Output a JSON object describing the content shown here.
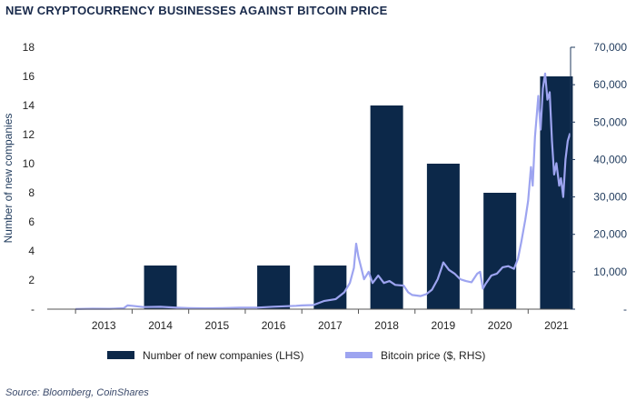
{
  "title": "NEW CRYPTOCURRENCY BUSINESSES AGAINST BITCOIN PRICE",
  "source": "Source: Bloomberg, CoinShares",
  "colors": {
    "bars": "#0c2849",
    "line": "#9da4f0",
    "axis_right": "#1f3a5c",
    "title": "#1a2b4c"
  },
  "chart_data": {
    "type": "bar",
    "categories": [
      "2013",
      "2014",
      "2015",
      "2016",
      "2017",
      "2018",
      "2019",
      "2020",
      "2021"
    ],
    "series": [
      {
        "name": "Number of new companies (LHS)",
        "type": "bar",
        "axis": "left",
        "values": [
          0,
          3,
          0,
          3,
          3,
          14,
          10,
          8,
          16
        ]
      },
      {
        "name": "Bitcoin price ($, RHS)",
        "type": "line",
        "axis": "right",
        "points": [
          [
            2013.0,
            20
          ],
          [
            2013.3,
            120
          ],
          [
            2013.6,
            100
          ],
          [
            2013.85,
            250
          ],
          [
            2013.92,
            1000
          ],
          [
            2014.0,
            900
          ],
          [
            2014.2,
            550
          ],
          [
            2014.5,
            620
          ],
          [
            2014.8,
            380
          ],
          [
            2015.0,
            300
          ],
          [
            2015.3,
            230
          ],
          [
            2015.6,
            270
          ],
          [
            2015.9,
            420
          ],
          [
            2016.2,
            420
          ],
          [
            2016.5,
            650
          ],
          [
            2016.9,
            900
          ],
          [
            2017.0,
            1000
          ],
          [
            2017.2,
            1100
          ],
          [
            2017.4,
            2200
          ],
          [
            2017.6,
            2700
          ],
          [
            2017.75,
            4500
          ],
          [
            2017.85,
            7000
          ],
          [
            2017.92,
            11000
          ],
          [
            2017.96,
            17500
          ],
          [
            2018.0,
            14000
          ],
          [
            2018.05,
            11000
          ],
          [
            2018.1,
            8000
          ],
          [
            2018.18,
            10000
          ],
          [
            2018.25,
            7000
          ],
          [
            2018.35,
            9000
          ],
          [
            2018.45,
            7000
          ],
          [
            2018.55,
            7500
          ],
          [
            2018.65,
            6500
          ],
          [
            2018.8,
            6300
          ],
          [
            2018.88,
            4500
          ],
          [
            2018.95,
            3800
          ],
          [
            2019.1,
            3500
          ],
          [
            2019.2,
            4000
          ],
          [
            2019.3,
            5200
          ],
          [
            2019.4,
            8000
          ],
          [
            2019.47,
            11000
          ],
          [
            2019.5,
            12500
          ],
          [
            2019.6,
            10500
          ],
          [
            2019.7,
            9500
          ],
          [
            2019.8,
            8000
          ],
          [
            2019.9,
            7500
          ],
          [
            2020.0,
            7200
          ],
          [
            2020.1,
            9500
          ],
          [
            2020.15,
            10000
          ],
          [
            2020.2,
            5500
          ],
          [
            2020.25,
            6800
          ],
          [
            2020.35,
            9000
          ],
          [
            2020.45,
            9500
          ],
          [
            2020.55,
            11200
          ],
          [
            2020.65,
            11500
          ],
          [
            2020.75,
            10800
          ],
          [
            2020.82,
            13500
          ],
          [
            2020.88,
            18000
          ],
          [
            2020.95,
            24000
          ],
          [
            2021.0,
            29000
          ],
          [
            2021.05,
            38000
          ],
          [
            2021.08,
            33000
          ],
          [
            2021.12,
            46000
          ],
          [
            2021.18,
            57000
          ],
          [
            2021.22,
            48000
          ],
          [
            2021.26,
            59000
          ],
          [
            2021.3,
            63000
          ],
          [
            2021.34,
            56000
          ],
          [
            2021.38,
            58000
          ],
          [
            2021.42,
            45000
          ],
          [
            2021.46,
            36000
          ],
          [
            2021.5,
            39000
          ],
          [
            2021.55,
            33000
          ],
          [
            2021.58,
            35000
          ],
          [
            2021.62,
            30000
          ],
          [
            2021.66,
            40000
          ],
          [
            2021.7,
            45000
          ],
          [
            2021.74,
            47000
          ]
        ]
      }
    ],
    "xlim": [
      2012.5,
      2021.75
    ],
    "ylim_left": [
      0,
      18
    ],
    "ylim_right": [
      0,
      70000
    ],
    "ylabel_left": "Number of new companies",
    "xlabel": "",
    "yticks_left": [
      "18",
      "16",
      "14",
      "12",
      "10",
      "8",
      "6",
      "4",
      "2",
      "-"
    ],
    "yticks_right": [
      "70,000",
      "60,000",
      "50,000",
      "40,000",
      "30,000",
      "20,000",
      "10,000",
      "-"
    ],
    "legend": [
      "Number of new companies (LHS)",
      "Bitcoin price ($, RHS)"
    ],
    "legend_position": "bottom",
    "grid": false
  }
}
